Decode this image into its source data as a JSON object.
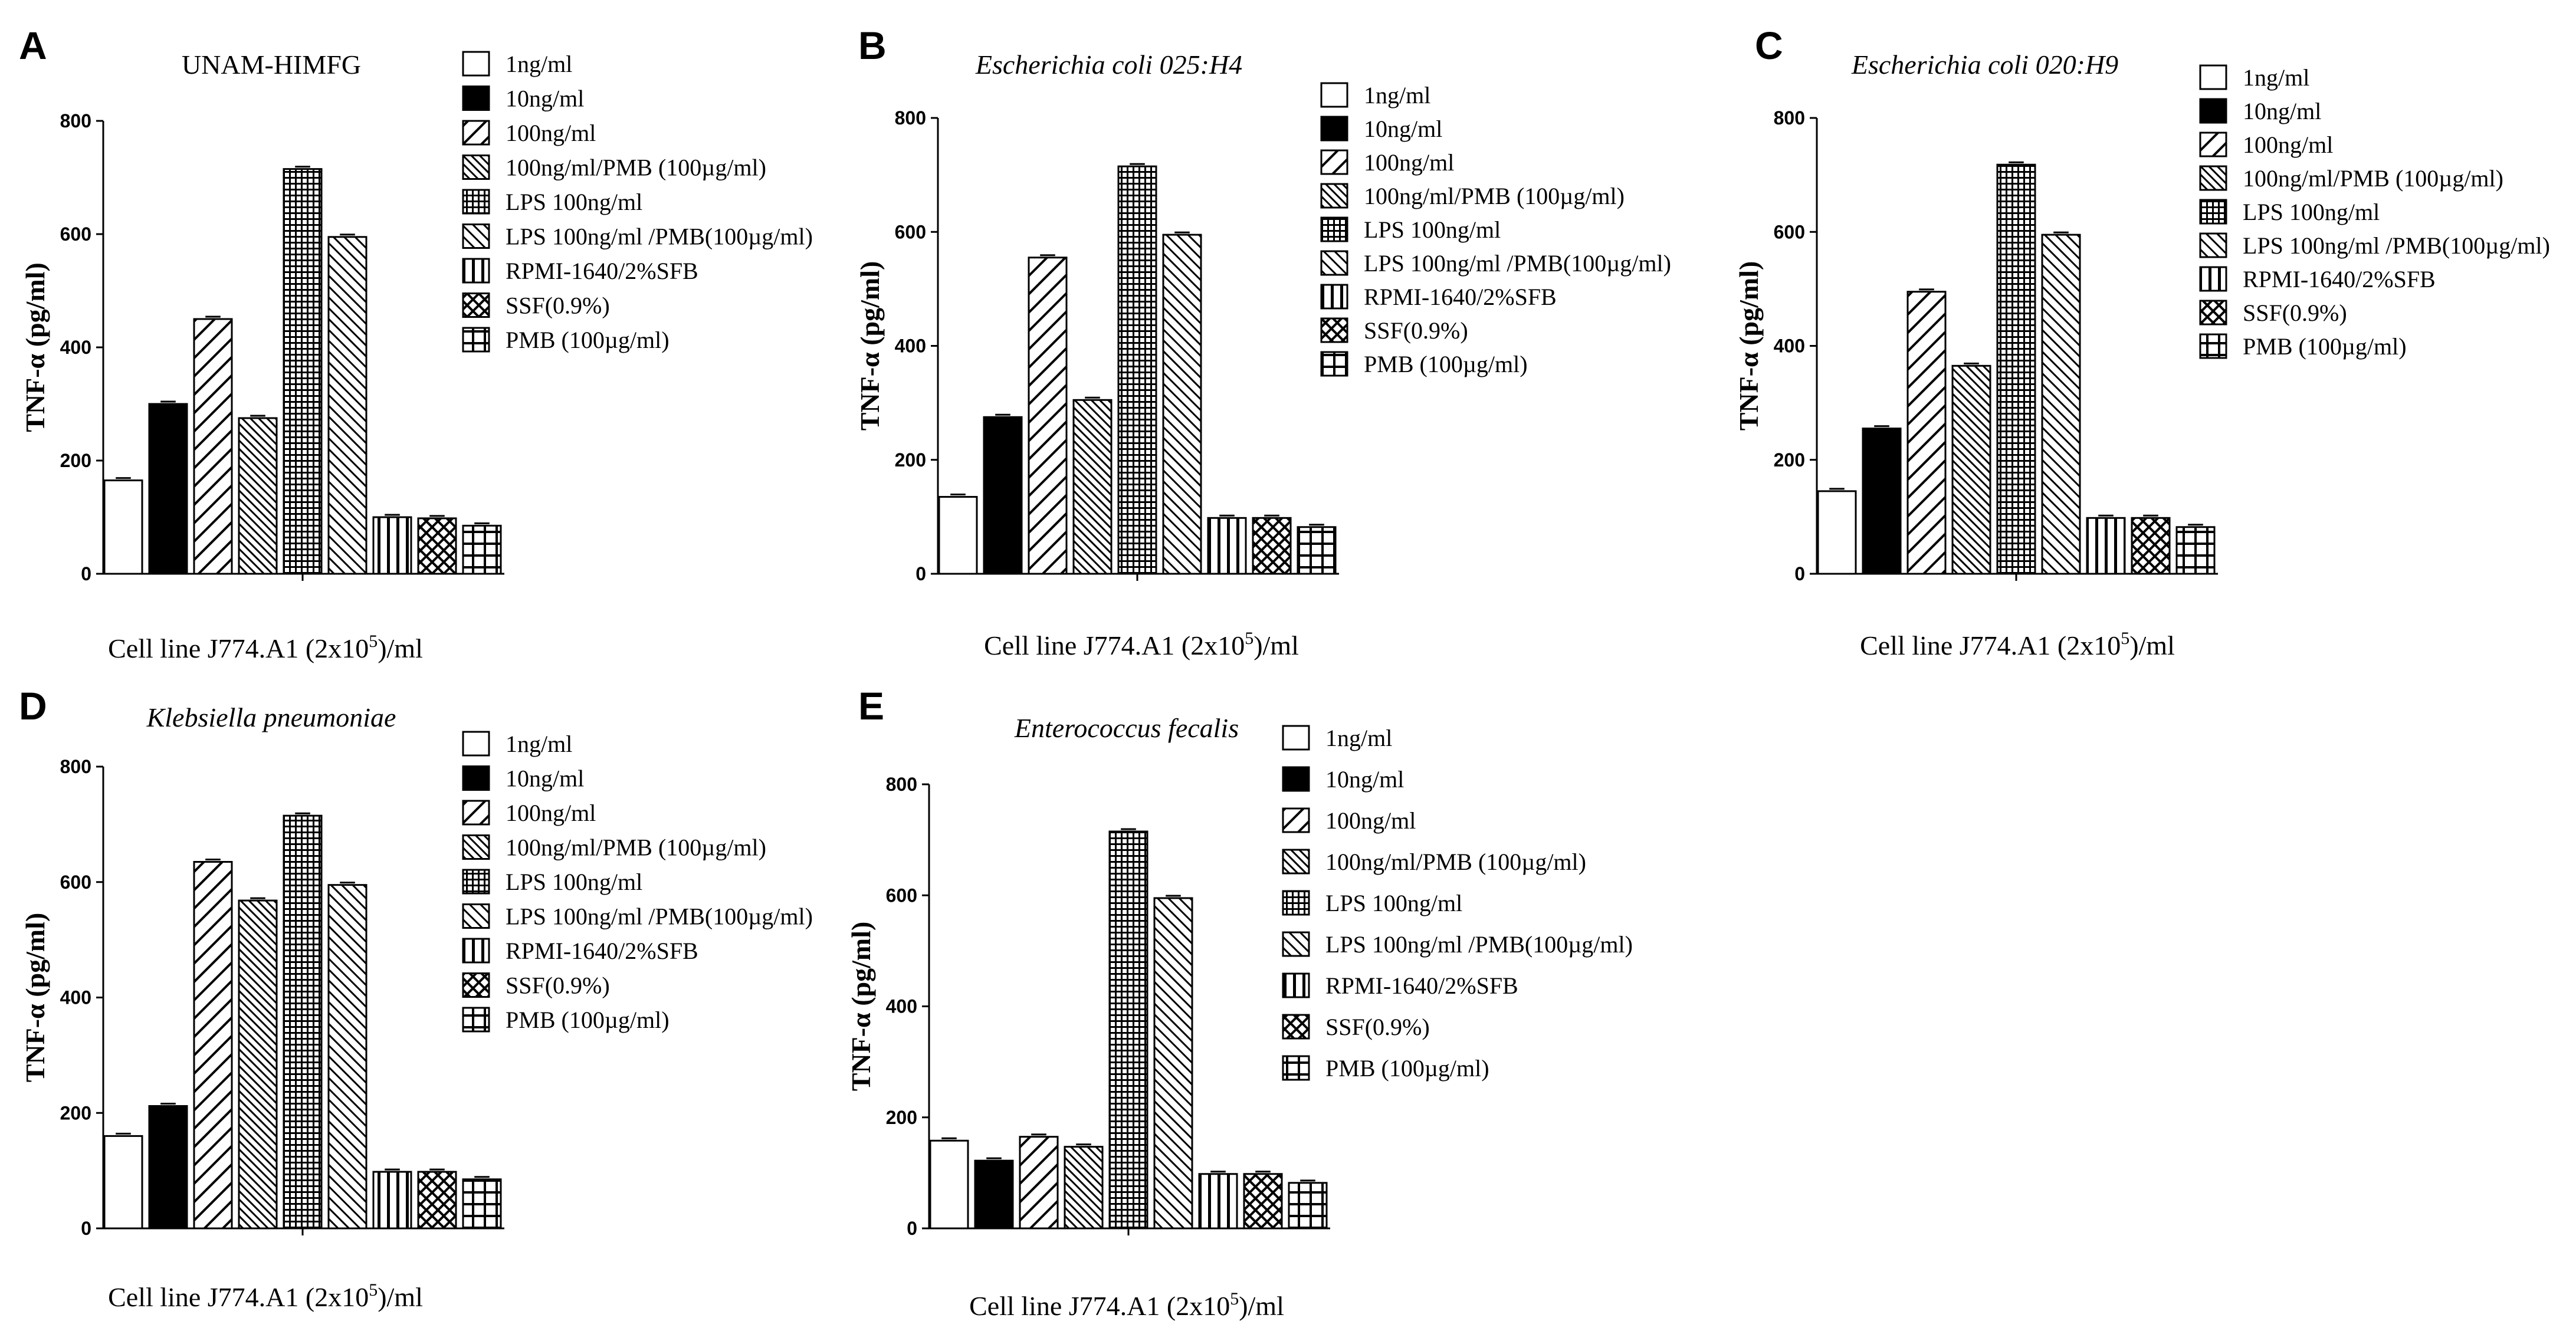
{
  "figure": {
    "series_labels": [
      "1ng/ml",
      "10ng/ml",
      "100ng/ml",
      "100ng/ml/PMB (100µg/ml)",
      "LPS 100ng/ml",
      "LPS 100ng/ml /PMB(100µg/ml)",
      "RPMI-1640/2%SFB",
      "SSF(0.9%)",
      "PMB (100µg/ml)"
    ],
    "bar_patterns": [
      "white",
      "black",
      "diag-wide",
      "diag-fine",
      "grid-fine",
      "diag-mid",
      "vstripe",
      "crosshatch",
      "grid-wide"
    ],
    "ylabel": "TNF-α (pg/ml)",
    "xlabel_main": "Cell line J774.A1 (2x10",
    "xlabel_sup": "5",
    "xlabel_tail": ")/ml",
    "colors": {
      "ink": "#000000",
      "paper": "#ffffff"
    }
  },
  "chart_data": [
    {
      "type": "bar",
      "letter": "A",
      "title": "UNAM-HIMFG",
      "title_italic": false,
      "ylim": [
        0,
        800
      ],
      "yticks": [
        "0",
        "200",
        "400",
        "600",
        "800"
      ],
      "values": [
        165,
        300,
        450,
        275,
        715,
        595,
        100,
        98,
        85
      ]
    },
    {
      "type": "bar",
      "letter": "B",
      "title": "Escherichia coli 025:H4",
      "title_italic": true,
      "ylim": [
        0,
        800
      ],
      "yticks": [
        "0",
        "200",
        "400",
        "600",
        "800"
      ],
      "values": [
        135,
        275,
        555,
        305,
        715,
        595,
        98,
        98,
        82
      ]
    },
    {
      "type": "bar",
      "letter": "C",
      "title": "Escherichia coli 020:H9",
      "title_italic": true,
      "ylim": [
        0,
        800
      ],
      "yticks": [
        "0",
        "200",
        "400",
        "600",
        "800"
      ],
      "values": [
        145,
        255,
        495,
        365,
        718,
        595,
        98,
        98,
        82
      ]
    },
    {
      "type": "bar",
      "letter": "D",
      "title": "Klebsiella pneumoniae",
      "title_italic": true,
      "ylim": [
        0,
        800
      ],
      "yticks": [
        "0",
        "200",
        "400",
        "600",
        "800"
      ],
      "values": [
        160,
        212,
        635,
        568,
        715,
        595,
        98,
        98,
        85
      ]
    },
    {
      "type": "bar",
      "letter": "E",
      "title": "Enterococcus fecalis",
      "title_italic": true,
      "ylim": [
        0,
        800
      ],
      "yticks": [
        "0",
        "200",
        "400",
        "600",
        "800"
      ],
      "values": [
        158,
        122,
        165,
        147,
        715,
        595,
        98,
        98,
        82
      ]
    }
  ]
}
